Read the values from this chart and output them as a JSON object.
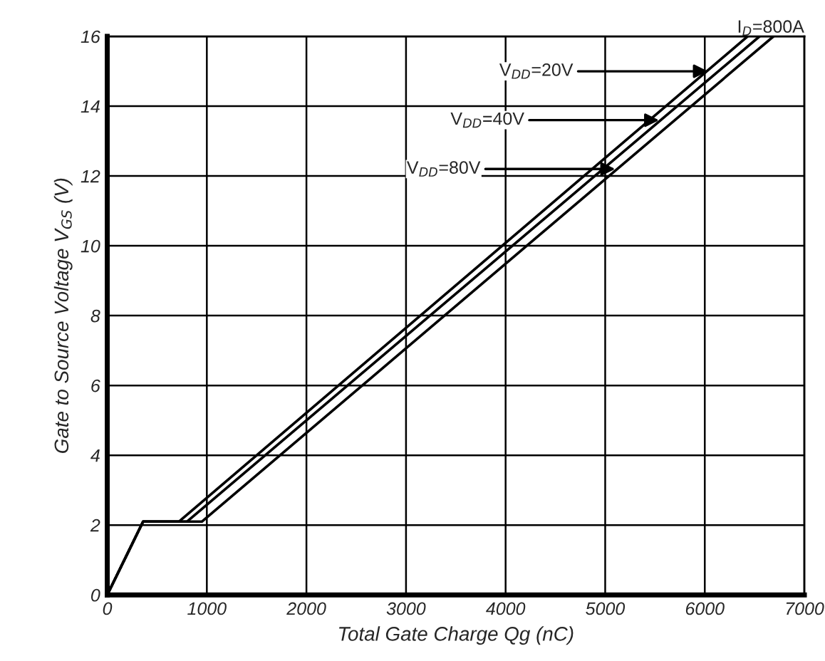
{
  "chart_data": {
    "type": "line",
    "xlabel": "Total Gate Charge Qg (nC)",
    "ylabel": "Gate to Source Voltage V$_{GS}$ (V)",
    "series": [
      {
        "color": "#000000",
        "x": [
          0,
          360,
          720,
          6430
        ],
        "values": [
          0,
          2.1,
          2.1,
          16
        ]
      },
      {
        "color": "#000000",
        "x": [
          0,
          360,
          800,
          6550
        ],
        "values": [
          0,
          2.1,
          2.1,
          16
        ]
      },
      {
        "color": "#000000",
        "x": [
          0,
          360,
          950,
          6690
        ],
        "values": [
          0,
          2.1,
          2.1,
          16
        ]
      }
    ],
    "xlim": [
      0,
      7000
    ],
    "xticks": [
      0,
      1000,
      2000,
      3000,
      4000,
      5000,
      6000,
      7000
    ],
    "ylim": [
      0,
      16
    ],
    "yticks": [
      0,
      2,
      4,
      6,
      8,
      10,
      12,
      14,
      16
    ],
    "grid": true,
    "marker": "none",
    "line_style": "solid",
    "annotations": [
      {
        "text": "V$_{DD}$=20V",
        "x": 6070,
        "y": 15.0
      },
      {
        "text": "V$_{DD}$=40V",
        "x": 5580,
        "y": 13.6
      },
      {
        "text": "V$_{DD}$=80V",
        "x": 5140,
        "y": 12.2
      },
      "I$_{D}$=800A"
    ]
  }
}
